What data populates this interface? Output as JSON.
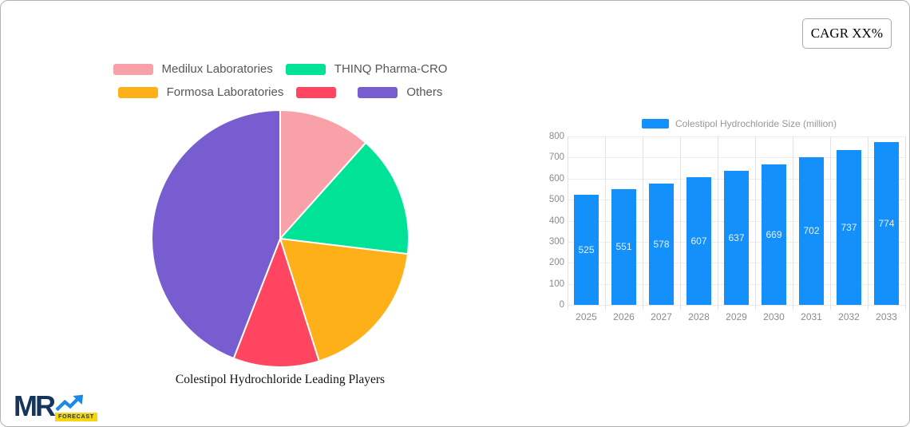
{
  "cagr_badge": "CAGR XX%",
  "logo": {
    "mr": "MR",
    "forecast": "FORECAST"
  },
  "pie_legend_rows": [
    [
      {
        "label": "Medilux Laboratories",
        "color": "#F8A1A8"
      },
      {
        "label": "THINQ Pharma-CRO",
        "color": "#00E396"
      }
    ],
    [
      {
        "label": "Formosa Laboratories",
        "color": "#FEB019"
      },
      {
        "label": "",
        "color": "#FF4560"
      },
      {
        "label": "Others",
        "color": "#775DD0"
      }
    ]
  ],
  "chart_data": [
    {
      "type": "pie",
      "title": "Colestipol Hydrochloride Leading Players",
      "labels": [
        "Medilux Laboratories",
        "THINQ Pharma-CRO",
        "Formosa Laboratories",
        "",
        "Others"
      ],
      "values": [
        11.6,
        15.3,
        18.2,
        10.8,
        44.1
      ],
      "colors": [
        "#F8A1A8",
        "#00E396",
        "#FEB019",
        "#FF4560",
        "#775DD0"
      ],
      "start_angle_deg": 0,
      "direction": "clockwise",
      "legend_position": "top",
      "slice_border_color": "#ffffff"
    },
    {
      "type": "bar",
      "categories": [
        "2025",
        "2026",
        "2027",
        "2028",
        "2029",
        "2030",
        "2031",
        "2032",
        "2033"
      ],
      "series": [
        {
          "name": "Colestipol Hydrochloride Size (million)",
          "values": [
            525,
            551,
            578,
            607,
            637,
            669,
            702,
            737,
            774
          ]
        }
      ],
      "bar_color": "#1490FB",
      "ylim": [
        0,
        800
      ],
      "ystep": 100,
      "grid": true,
      "legend_position": "top",
      "value_labels": "inside-middle"
    }
  ]
}
